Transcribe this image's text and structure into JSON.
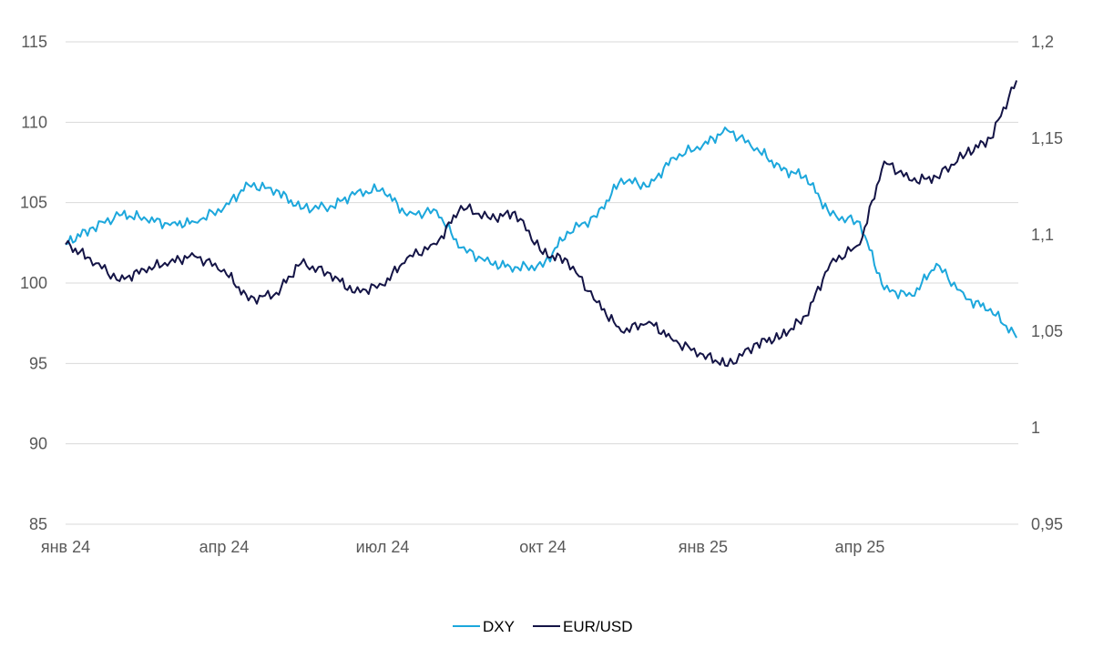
{
  "chart_data": {
    "type": "line",
    "title": "",
    "xlabel": "",
    "ylabel": "",
    "x_ticks": [
      "янв 24",
      "апр 24",
      "июл 24",
      "окт 24",
      "янв 25",
      "апр 25"
    ],
    "x_range": [
      "2024-01-01",
      "2025-07-01"
    ],
    "left_axis": {
      "min": 85,
      "max": 115,
      "ticks": [
        "85",
        "90",
        "95",
        "100",
        "105",
        "110",
        "115"
      ]
    },
    "right_axis": {
      "min": 0.95,
      "max": 1.2,
      "ticks": [
        "0,95",
        "1",
        "1,05",
        "1,1",
        "1,15",
        "1,2"
      ]
    },
    "grid": true,
    "legend_position": "bottom-center",
    "colors": {
      "dxy": "#1ca7dc",
      "eurusd": "#141446",
      "grid": "#d9d9d9",
      "tick_text": "#595959"
    },
    "series": [
      {
        "name": "DXY",
        "axis": "left",
        "x": [
          "2024-01-01",
          "2024-01-15",
          "2024-02-01",
          "2024-02-15",
          "2024-03-01",
          "2024-03-15",
          "2024-04-01",
          "2024-04-15",
          "2024-05-01",
          "2024-05-15",
          "2024-06-01",
          "2024-06-15",
          "2024-07-01",
          "2024-07-15",
          "2024-08-01",
          "2024-08-15",
          "2024-09-01",
          "2024-09-15",
          "2024-10-01",
          "2024-10-15",
          "2024-11-01",
          "2024-11-15",
          "2024-12-01",
          "2024-12-15",
          "2025-01-01",
          "2025-01-15",
          "2025-02-01",
          "2025-02-15",
          "2025-03-01",
          "2025-03-15",
          "2025-04-01",
          "2025-04-15",
          "2025-05-01",
          "2025-05-15",
          "2025-06-01",
          "2025-06-15",
          "2025-06-30"
        ],
        "values": [
          102.4,
          103.4,
          104.2,
          104.1,
          103.6,
          103.8,
          104.7,
          106.1,
          105.8,
          104.6,
          104.8,
          105.5,
          105.9,
          104.2,
          104.5,
          102.2,
          101.2,
          101.0,
          101.0,
          103.2,
          104.1,
          106.5,
          106.0,
          107.8,
          108.6,
          109.5,
          108.4,
          107.0,
          106.7,
          104.2,
          103.8,
          99.6,
          99.2,
          101.2,
          99.0,
          98.4,
          96.6
        ]
      },
      {
        "name": "EUR/USD",
        "axis": "right",
        "x": [
          "2024-01-01",
          "2024-01-15",
          "2024-02-01",
          "2024-02-15",
          "2024-03-01",
          "2024-03-15",
          "2024-04-01",
          "2024-04-15",
          "2024-05-01",
          "2024-05-15",
          "2024-06-01",
          "2024-06-15",
          "2024-07-01",
          "2024-07-15",
          "2024-08-01",
          "2024-08-15",
          "2024-09-01",
          "2024-09-15",
          "2024-10-01",
          "2024-10-15",
          "2024-11-01",
          "2024-11-15",
          "2024-12-01",
          "2024-12-15",
          "2025-01-01",
          "2025-01-15",
          "2025-02-01",
          "2025-02-15",
          "2025-03-01",
          "2025-03-15",
          "2025-04-01",
          "2025-04-15",
          "2025-05-01",
          "2025-05-15",
          "2025-06-01",
          "2025-06-15",
          "2025-06-30"
        ],
        "values": [
          1.095,
          1.088,
          1.076,
          1.082,
          1.086,
          1.089,
          1.082,
          1.066,
          1.07,
          1.085,
          1.08,
          1.07,
          1.074,
          1.088,
          1.095,
          1.115,
          1.108,
          1.112,
          1.09,
          1.087,
          1.065,
          1.05,
          1.055,
          1.045,
          1.038,
          1.032,
          1.044,
          1.047,
          1.058,
          1.085,
          1.095,
          1.138,
          1.128,
          1.13,
          1.142,
          1.15,
          1.18
        ]
      }
    ]
  }
}
